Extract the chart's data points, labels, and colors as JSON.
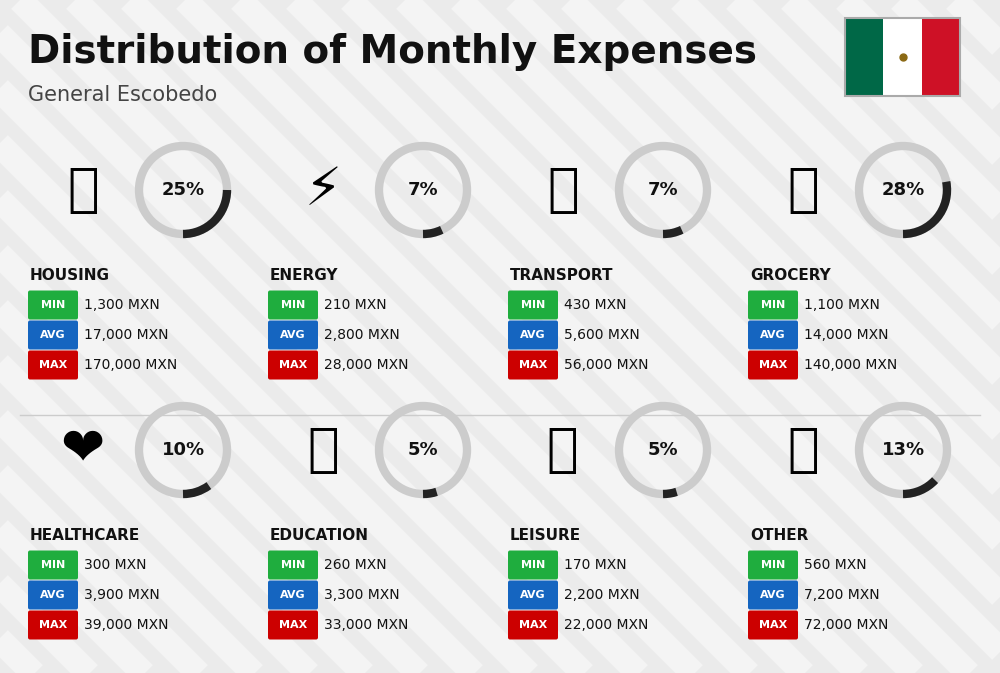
{
  "title": "Distribution of Monthly Expenses",
  "subtitle": "General Escobedo",
  "background_color": "#ebebeb",
  "categories": [
    {
      "name": "HOUSING",
      "percent": 25,
      "icon": "🏙",
      "min_val": "1,300 MXN",
      "avg_val": "17,000 MXN",
      "max_val": "170,000 MXN",
      "row": 0,
      "col": 0
    },
    {
      "name": "ENERGY",
      "percent": 7,
      "icon": "⚡",
      "min_val": "210 MXN",
      "avg_val": "2,800 MXN",
      "max_val": "28,000 MXN",
      "row": 0,
      "col": 1
    },
    {
      "name": "TRANSPORT",
      "percent": 7,
      "icon": "🚌",
      "min_val": "430 MXN",
      "avg_val": "5,600 MXN",
      "max_val": "56,000 MXN",
      "row": 0,
      "col": 2
    },
    {
      "name": "GROCERY",
      "percent": 28,
      "icon": "🛒",
      "min_val": "1,100 MXN",
      "avg_val": "14,000 MXN",
      "max_val": "140,000 MXN",
      "row": 0,
      "col": 3
    },
    {
      "name": "HEALTHCARE",
      "percent": 10,
      "icon": "❤",
      "min_val": "300 MXN",
      "avg_val": "3,900 MXN",
      "max_val": "39,000 MXN",
      "row": 1,
      "col": 0
    },
    {
      "name": "EDUCATION",
      "percent": 5,
      "icon": "🎓",
      "min_val": "260 MXN",
      "avg_val": "3,300 MXN",
      "max_val": "33,000 MXN",
      "row": 1,
      "col": 1
    },
    {
      "name": "LEISURE",
      "percent": 5,
      "icon": "🛍",
      "min_val": "170 MXN",
      "avg_val": "2,200 MXN",
      "max_val": "22,000 MXN",
      "row": 1,
      "col": 2
    },
    {
      "name": "OTHER",
      "percent": 13,
      "icon": "👜",
      "min_val": "560 MXN",
      "avg_val": "7,200 MXN",
      "max_val": "72,000 MXN",
      "row": 1,
      "col": 3
    }
  ],
  "color_min": "#1fad3e",
  "color_avg": "#1565c0",
  "color_max": "#cc0000",
  "donut_color": "#222222",
  "donut_bg": "#cccccc",
  "stripe_color": "#ffffff",
  "stripe_alpha": 0.45,
  "flag_green": "#006847",
  "flag_white": "#ffffff",
  "flag_red": "#CE1126"
}
